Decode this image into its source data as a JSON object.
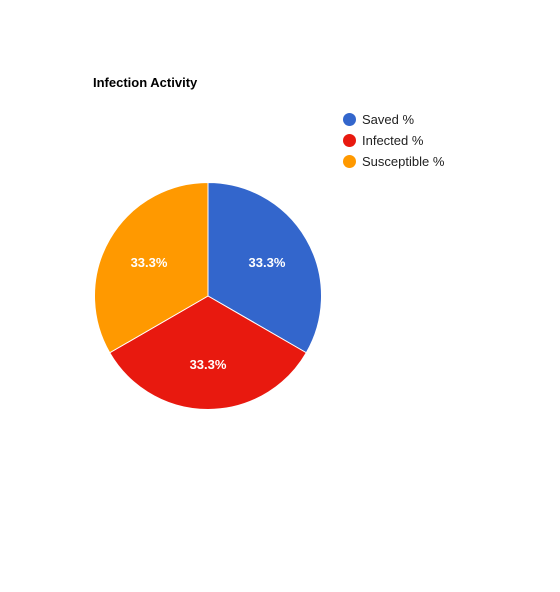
{
  "chart_data": {
    "type": "pie",
    "title": "Infection Activity",
    "slices": [
      {
        "name": "Saved %",
        "value": 33.3,
        "label": "33.3%",
        "color": "#3366cc"
      },
      {
        "name": "Infected %",
        "value": 33.3,
        "label": "33.3%",
        "color": "#e8190f"
      },
      {
        "name": "Susceptible %",
        "value": 33.3,
        "label": "33.3%",
        "color": "#ff9900"
      }
    ],
    "legend_position": "right",
    "start_angle": "top",
    "direction": "clockwise"
  }
}
